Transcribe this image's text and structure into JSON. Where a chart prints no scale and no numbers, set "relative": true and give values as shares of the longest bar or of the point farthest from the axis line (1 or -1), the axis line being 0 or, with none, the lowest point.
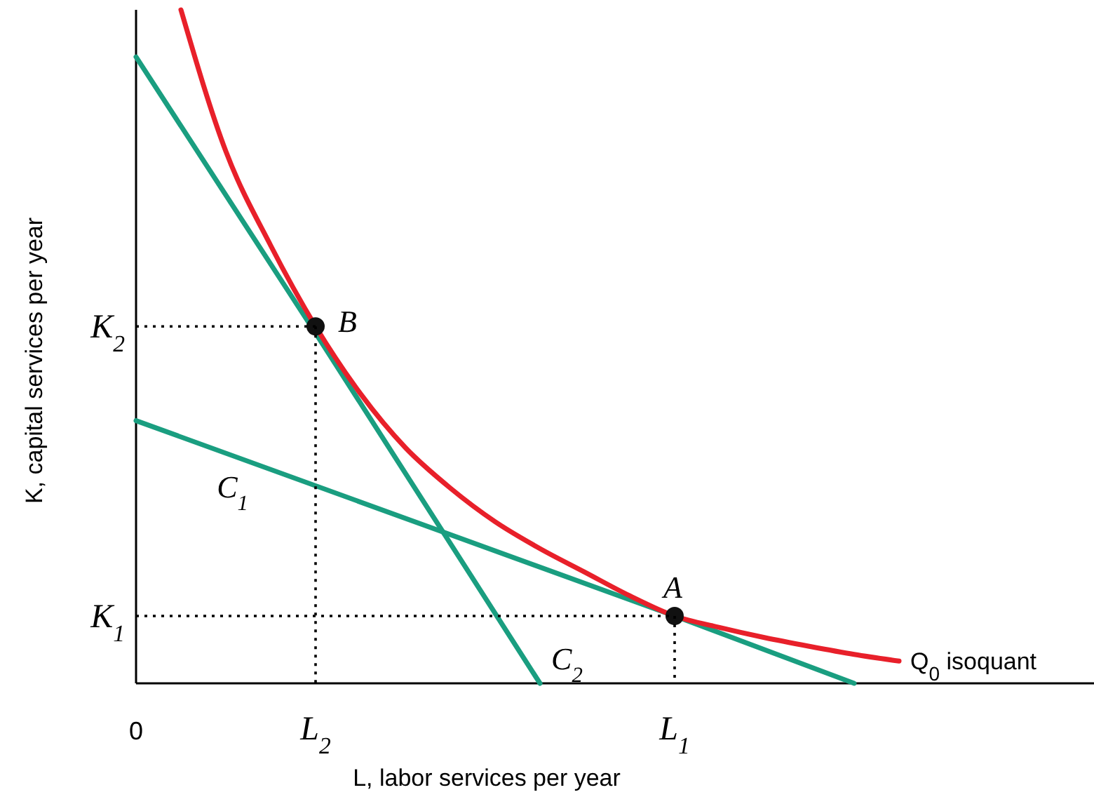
{
  "chart_data": {
    "type": "line",
    "relative": true,
    "xlabel": "L, labor services per year",
    "ylabel": "K, capital services per year",
    "categories": [
      "0",
      null,
      null,
      null,
      "L$_{2}$",
      null,
      null,
      null,
      null,
      null,
      null,
      null,
      "L$_{1}$",
      null,
      null,
      null,
      null,
      null,
      null
    ],
    "line_style": "solid",
    "series": [
      {
        "name": "C$_{2}$",
        "color": "#1a9e80",
        "values": [
          0.93,
          null,
          null,
          null,
          0.52,
          null,
          null,
          null,
          null,
          0,
          null,
          null,
          null,
          null,
          null,
          null,
          null,
          null,
          null
        ]
      },
      {
        "name": "C$_{1}$",
        "color": "#1a9e80",
        "values": [
          0.39,
          null,
          null,
          null,
          null,
          null,
          null,
          null,
          null,
          null,
          null,
          null,
          0.1,
          null,
          null,
          null,
          0,
          null,
          null
        ]
      },
      {
        "name": "Q$_{0}$ isoquant",
        "color": "#e8202a",
        "values": [
          null,
          1,
          0.79,
          0.65,
          0.53,
          0.43,
          0.35,
          0.29,
          0.24,
          0.2,
          0.165,
          0.13,
          0.1,
          0.083,
          0.068,
          0.055,
          0.043,
          0.033,
          null
        ]
      },
      {
        "name": "B",
        "type": "scatter",
        "color": "#111111",
        "marker": "circle",
        "values": [
          null,
          null,
          null,
          null,
          0.53,
          null,
          null,
          null,
          null,
          null,
          null,
          null,
          null,
          null,
          null,
          null,
          null,
          null,
          null
        ]
      },
      {
        "name": "A",
        "type": "scatter",
        "color": "#111111",
        "marker": "circle",
        "values": [
          null,
          null,
          null,
          null,
          null,
          null,
          null,
          null,
          null,
          null,
          null,
          null,
          0.1,
          null,
          null,
          null,
          null,
          null,
          null
        ]
      }
    ],
    "ref_lines": [
      {
        "axis": "y",
        "value": 0.53,
        "label": "K$_{2}$",
        "color": "#000000",
        "line_style": "dotted"
      },
      {
        "axis": "y",
        "value": 0.1,
        "label": "K$_{1}$",
        "color": "#000000",
        "line_style": "dotted"
      }
    ]
  }
}
